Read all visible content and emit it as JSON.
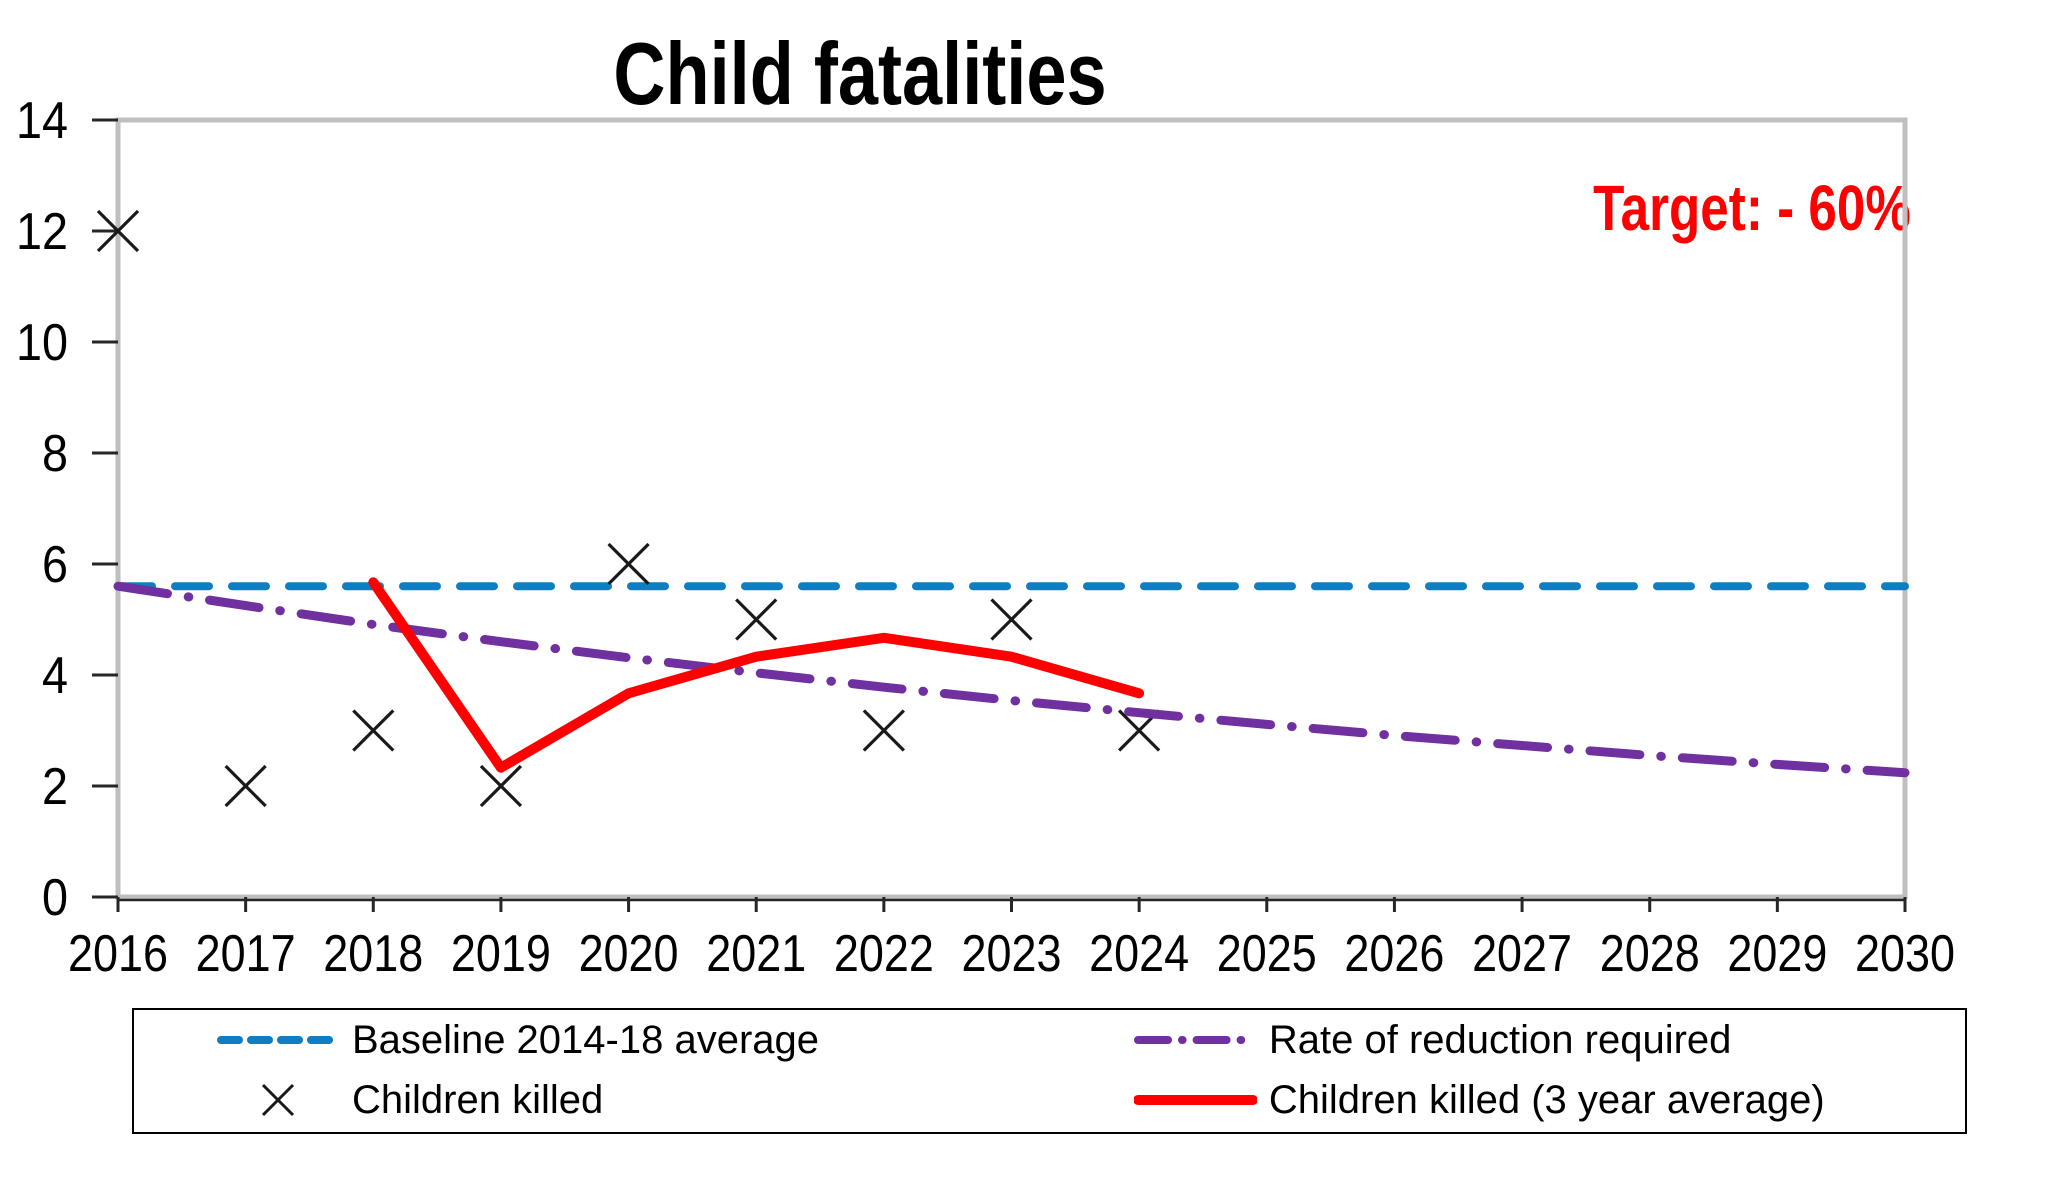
{
  "chart_data": {
    "type": "line",
    "title": "Child fatalities",
    "annotation": "Target: - 60%",
    "annotation_color": "#FF0000",
    "xlabel": "",
    "ylabel": "",
    "xlim": [
      2016,
      2030
    ],
    "ylim": [
      0,
      14
    ],
    "xticks": [
      2016,
      2017,
      2018,
      2019,
      2020,
      2021,
      2022,
      2023,
      2024,
      2025,
      2026,
      2027,
      2028,
      2029,
      2030
    ],
    "yticks": [
      0,
      2,
      4,
      6,
      8,
      10,
      12,
      14
    ],
    "grid": false,
    "legend_position": "bottom",
    "frame_color": "#BFBFBF",
    "axis_color": "#262626",
    "series": [
      {
        "name": "Baseline 2014-18 average",
        "type": "line",
        "style": "dashed",
        "color": "#0F7DC2",
        "x": [
          2016,
          2030
        ],
        "values": [
          5.6,
          5.6
        ]
      },
      {
        "name": "Children killed",
        "type": "scatter",
        "style": "scatter-x",
        "color": "#1A1A1A",
        "x": [
          2016,
          2017,
          2018,
          2019,
          2020,
          2021,
          2022,
          2023,
          2024
        ],
        "values": [
          12,
          2,
          3,
          2,
          6,
          5,
          3,
          5,
          3
        ]
      },
      {
        "name": "Rate of reduction required",
        "type": "line",
        "style": "dash-dot",
        "color": "#7030A0",
        "x": [
          2016,
          2017,
          2018,
          2019,
          2020,
          2021,
          2022,
          2023,
          2024,
          2025,
          2026,
          2027,
          2028,
          2029,
          2030
        ],
        "values": [
          5.6,
          5.25,
          4.91,
          4.6,
          4.31,
          4.04,
          3.78,
          3.54,
          3.32,
          3.11,
          2.91,
          2.73,
          2.55,
          2.39,
          2.24
        ]
      },
      {
        "name": "Children killed (3 year average)",
        "type": "line",
        "style": "solid",
        "color": "#FF0000",
        "x": [
          2018,
          2019,
          2020,
          2021,
          2022,
          2023,
          2024
        ],
        "values": [
          5.67,
          2.33,
          3.67,
          4.33,
          4.67,
          4.33,
          3.67
        ]
      }
    ]
  }
}
